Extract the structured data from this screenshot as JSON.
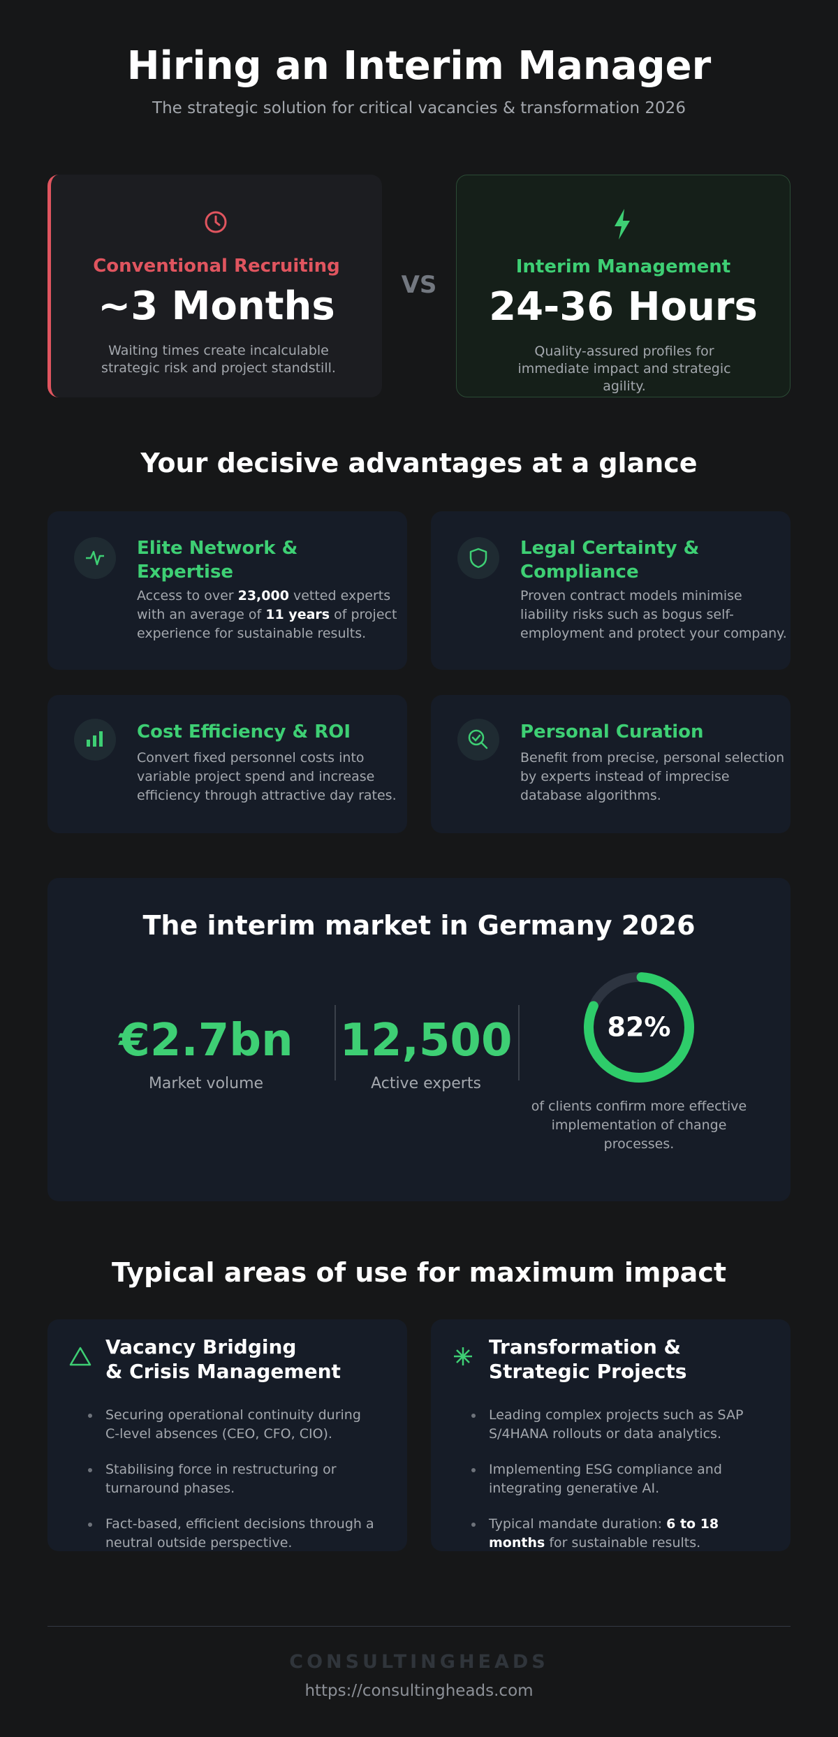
{
  "header": {
    "title": "Hiring an Interim Manager",
    "subtitle": "The strategic solution for critical vacancies & transformation 2026"
  },
  "comparison": {
    "left": {
      "label": "Conventional Recruiting",
      "value": "~3 Months",
      "description": "Waiting times create incalculable strategic risk and project standstill."
    },
    "separator": "VS",
    "right": {
      "label": "Interim Management",
      "value": "24-36 Hours",
      "description": "Quality-assured profiles for immediate impact and strategic agility."
    }
  },
  "advantages": {
    "heading": "Your decisive advantages at a glance",
    "items": [
      {
        "title": "Elite Network & Expertise",
        "body": [
          "Access to over ",
          "23,000",
          " vetted experts with an average of ",
          "11 years",
          " of project experience for sustainable results."
        ]
      },
      {
        "title": "Legal Certainty & Compliance",
        "body": [
          "Proven contract models minimise liability risks such as bogus self-employment and protect your company."
        ]
      },
      {
        "title": "Cost Efficiency & ROI",
        "body": [
          "Convert fixed personnel costs into variable project spend and increase efficiency through attractive day rates."
        ]
      },
      {
        "title": "Personal Curation",
        "body": [
          "Benefit from precise, personal selection by experts instead of imprecise database algorithms."
        ]
      }
    ]
  },
  "market": {
    "heading": "The interim market in Germany 2026",
    "stats": [
      {
        "value": "€2.7bn",
        "label": "Market volume"
      },
      {
        "value": "12,500",
        "label": "Active experts"
      }
    ],
    "share": {
      "value": 82,
      "label": "82%",
      "caption": "of clients confirm more effective implementation of change processes."
    }
  },
  "areas": {
    "heading": "Typical areas of use for maximum impact",
    "items": [
      {
        "title": [
          "Vacancy Bridging",
          "& Crisis Management"
        ],
        "bullets": [
          [
            "Securing operational continuity during C-level absences (CEO, CFO, CIO)."
          ],
          [
            "Stabilising force in restructuring or turnaround phases."
          ],
          [
            "Fact-based, efficient decisions through a neutral outside perspective."
          ]
        ]
      },
      {
        "title": [
          "Transformation &",
          "Strategic Projects"
        ],
        "bullets": [
          [
            "Leading complex projects such as SAP S/4HANA rollouts or data analytics."
          ],
          [
            "Implementing ESG compliance and integrating generative AI."
          ],
          [
            "Typical mandate duration: ",
            "6 to 18 months",
            " for sustainable results."
          ]
        ]
      }
    ]
  },
  "footer": {
    "brand": "CONSULTINGHEADS",
    "url": "https://consultingheads.com"
  }
}
